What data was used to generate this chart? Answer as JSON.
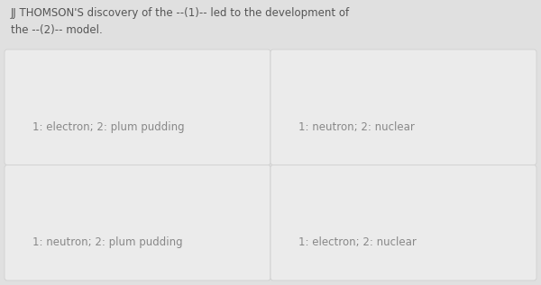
{
  "bg_color": "#e0e0e0",
  "card_bg_color": "#ebebeb",
  "card_border_color": "#d0d0d0",
  "title_text_line1": "JJ THOMSON'S discovery of the --(1)-- led to the development of",
  "title_text_line2": "the --(2)-- model.",
  "title_fontsize": 8.5,
  "title_color": "#555555",
  "options": [
    {
      "text": "1: electron; 2: plum pudding",
      "row": 0,
      "col": 0
    },
    {
      "text": "1: neutron; 2: nuclear",
      "row": 0,
      "col": 1
    },
    {
      "text": "1: neutron; 2: plum pudding",
      "row": 1,
      "col": 0
    },
    {
      "text": "1: electron; 2: nuclear",
      "row": 1,
      "col": 1
    }
  ],
  "option_fontsize": 8.5,
  "option_text_color": "#888888",
  "fig_width": 6.0,
  "fig_height": 3.17,
  "dpi": 100
}
